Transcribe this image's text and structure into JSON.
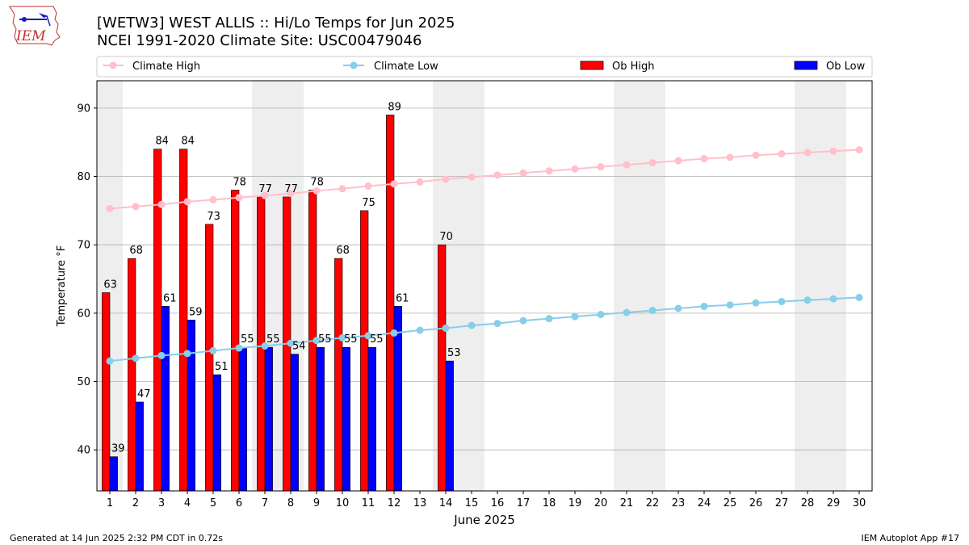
{
  "header": {
    "logo_text": "IEM",
    "title_line1": "[WETW3] WEST ALLIS :: Hi/Lo Temps for Jun 2025",
    "title_line2": "NCEI 1991-2020 Climate Site: USC00479046"
  },
  "footer": {
    "left": "Generated at 14 Jun 2025 2:32 PM CDT in 0.72s",
    "right": "IEM Autoplot App #17"
  },
  "colors": {
    "ob_high": "#ff0000",
    "ob_low": "#0000ff",
    "climate_high": "#ffc0cb",
    "climate_low": "#87ceeb",
    "weekend_shade": "#eeeeee",
    "grid": "#b0b0b0"
  },
  "chart_data": {
    "type": "bar",
    "xlabel": "June 2025",
    "ylabel": "Temperature °F",
    "xlim": [
      0.5,
      30.5
    ],
    "ylim": [
      34,
      94
    ],
    "yticks": [
      40,
      50,
      60,
      70,
      80,
      90
    ],
    "grid": "horizontal",
    "legend_position": "top",
    "legend": [
      "Climate High",
      "Climate Low",
      "Ob High",
      "Ob Low"
    ],
    "days": [
      1,
      2,
      3,
      4,
      5,
      6,
      7,
      8,
      9,
      10,
      11,
      12,
      13,
      14,
      15,
      16,
      17,
      18,
      19,
      20,
      21,
      22,
      23,
      24,
      25,
      26,
      27,
      28,
      29,
      30
    ],
    "weekend_days": [
      1,
      7,
      8,
      14,
      15,
      21,
      22,
      28,
      29
    ],
    "ob_high": [
      63,
      68,
      84,
      84,
      73,
      78,
      77,
      77,
      78,
      68,
      75,
      89,
      null,
      70
    ],
    "ob_low": [
      39,
      47,
      61,
      59,
      51,
      55,
      55,
      54,
      55,
      55,
      55,
      61,
      null,
      53
    ],
    "climate_high": [
      75.3,
      75.6,
      75.9,
      76.3,
      76.6,
      76.9,
      77.2,
      77.5,
      77.9,
      78.2,
      78.6,
      78.9,
      79.2,
      79.6,
      79.9,
      80.2,
      80.5,
      80.8,
      81.1,
      81.4,
      81.7,
      82.0,
      82.3,
      82.6,
      82.8,
      83.1,
      83.3,
      83.5,
      83.7,
      83.9
    ],
    "climate_low": [
      53.0,
      53.4,
      53.8,
      54.1,
      54.5,
      54.9,
      55.2,
      55.6,
      56.0,
      56.4,
      56.7,
      57.1,
      57.5,
      57.8,
      58.2,
      58.5,
      58.9,
      59.2,
      59.5,
      59.8,
      60.1,
      60.4,
      60.7,
      61.0,
      61.2,
      61.5,
      61.7,
      61.9,
      62.1,
      62.3
    ]
  }
}
